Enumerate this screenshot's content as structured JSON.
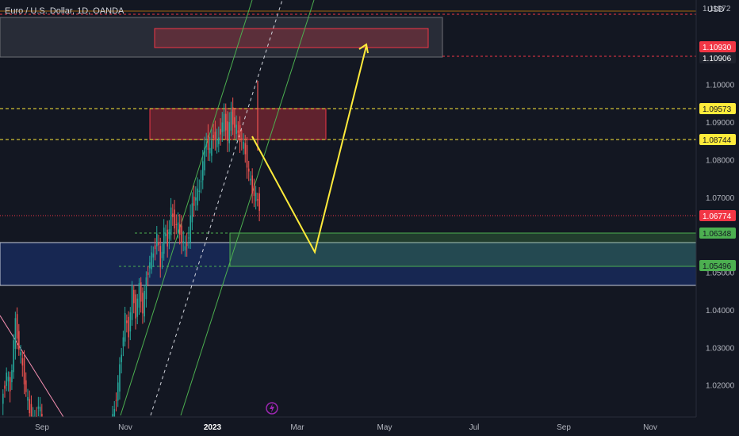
{
  "header": {
    "symbol_title": "Euro / U.S. Dollar, 1D, OANDA",
    "currency": "USD"
  },
  "colors": {
    "background": "#131722",
    "up_candle": "#26a69a",
    "down_candle": "#ef5350",
    "channel": "#4caf50",
    "projection": "#ffeb3b",
    "supply_zone": "#f23645",
    "demand_zone": "#2962ff",
    "target_zone": "#4caf50"
  },
  "chart_data": {
    "type": "candlestick",
    "instrument": "EURUSD",
    "timeframe": "1D",
    "x_ticks": [
      "Sep",
      "Nov",
      "2023",
      "Mar",
      "May",
      "Jul",
      "Sep",
      "Nov"
    ],
    "y_ticks": [
      "1.02000",
      "1.03000",
      "1.04000",
      "1.05000",
      "1.06000",
      "1.07000",
      "1.08000",
      "1.09000",
      "1.10000"
    ],
    "ylim": [
      1.0115,
      1.1225
    ],
    "price_labels": [
      {
        "value": "1.11972",
        "style": "partial"
      },
      {
        "value": "1.10930",
        "style": "red"
      },
      {
        "value": "1.10906",
        "style": "dark"
      },
      {
        "value": "1.09573",
        "style": "yellow"
      },
      {
        "value": "1.08744",
        "style": "yellow"
      },
      {
        "value": "1.06774",
        "style": "red"
      },
      {
        "value": "1.06348",
        "style": "green"
      },
      {
        "value": "1.05496",
        "style": "green"
      }
    ],
    "candles_close_path": [
      {
        "day": 0,
        "price": 1.015
      },
      {
        "day": 3,
        "price": 1.023
      },
      {
        "day": 5,
        "price": 1.019
      },
      {
        "day": 8,
        "price": 1.037
      },
      {
        "day": 10,
        "price": 1.03
      },
      {
        "day": 12,
        "price": 1.025
      },
      {
        "day": 14,
        "price": 1.018
      },
      {
        "day": 16,
        "price": 1.013
      },
      {
        "day": 19,
        "price": 1.01
      },
      {
        "day": 21,
        "price": 1.015
      },
      {
        "day": 23,
        "price": 1.011
      },
      {
        "day": 60,
        "price": 1.003
      },
      {
        "day": 62,
        "price": 1.008
      },
      {
        "day": 64,
        "price": 1.014
      },
      {
        "day": 66,
        "price": 1.02
      },
      {
        "day": 68,
        "price": 1.029
      },
      {
        "day": 70,
        "price": 1.038
      },
      {
        "day": 72,
        "price": 1.034
      },
      {
        "day": 74,
        "price": 1.045
      },
      {
        "day": 76,
        "price": 1.039
      },
      {
        "day": 78,
        "price": 1.046
      },
      {
        "day": 80,
        "price": 1.04
      },
      {
        "day": 82,
        "price": 1.048
      },
      {
        "day": 84,
        "price": 1.053
      },
      {
        "day": 86,
        "price": 1.055
      },
      {
        "day": 88,
        "price": 1.06
      },
      {
        "day": 90,
        "price": 1.052
      },
      {
        "day": 92,
        "price": 1.061
      },
      {
        "day": 94,
        "price": 1.058
      },
      {
        "day": 96,
        "price": 1.066
      },
      {
        "day": 98,
        "price": 1.063
      },
      {
        "day": 100,
        "price": 1.062
      },
      {
        "day": 102,
        "price": 1.059
      },
      {
        "day": 104,
        "price": 1.056
      },
      {
        "day": 106,
        "price": 1.06
      },
      {
        "day": 108,
        "price": 1.068
      },
      {
        "day": 110,
        "price": 1.07
      },
      {
        "day": 112,
        "price": 1.072
      },
      {
        "day": 114,
        "price": 1.079
      },
      {
        "day": 116,
        "price": 1.085
      },
      {
        "day": 118,
        "price": 1.082
      },
      {
        "day": 120,
        "price": 1.087
      },
      {
        "day": 122,
        "price": 1.084
      },
      {
        "day": 124,
        "price": 1.088
      },
      {
        "day": 126,
        "price": 1.091
      },
      {
        "day": 128,
        "price": 1.086
      },
      {
        "day": 130,
        "price": 1.092
      },
      {
        "day": 132,
        "price": 1.089
      },
      {
        "day": 134,
        "price": 1.087
      },
      {
        "day": 136,
        "price": 1.085
      },
      {
        "day": 138,
        "price": 1.082
      },
      {
        "day": 140,
        "price": 1.076
      },
      {
        "day": 142,
        "price": 1.072
      },
      {
        "day": 144,
        "price": 1.07
      },
      {
        "day": 146,
        "price": 1.0677
      }
    ],
    "zones": [
      {
        "name": "upper-supply",
        "from": 1.119,
        "to": 1.112,
        "kind": "supply"
      },
      {
        "name": "target-zone",
        "from": 1.1159,
        "to": 1.1106,
        "kind": "supply-outline"
      },
      {
        "name": "supply",
        "from": 1.0957,
        "to": 1.0874,
        "kind": "supply"
      },
      {
        "name": "demand",
        "from": 1.0611,
        "to": 1.0498,
        "kind": "demand"
      },
      {
        "name": "entry",
        "from": 1.0635,
        "to": 1.055,
        "kind": "target"
      }
    ],
    "horizontal_levels": [
      1.1197,
      1.1093,
      1.0957,
      1.0874,
      1.0677,
      1.0635,
      1.055
    ],
    "projection_path": [
      {
        "label": "from",
        "price": 1.0885
      },
      {
        "label": "low",
        "price": 1.0578
      },
      {
        "label": "target",
        "price": 1.1119
      }
    ],
    "grid": false,
    "legend": "none"
  }
}
